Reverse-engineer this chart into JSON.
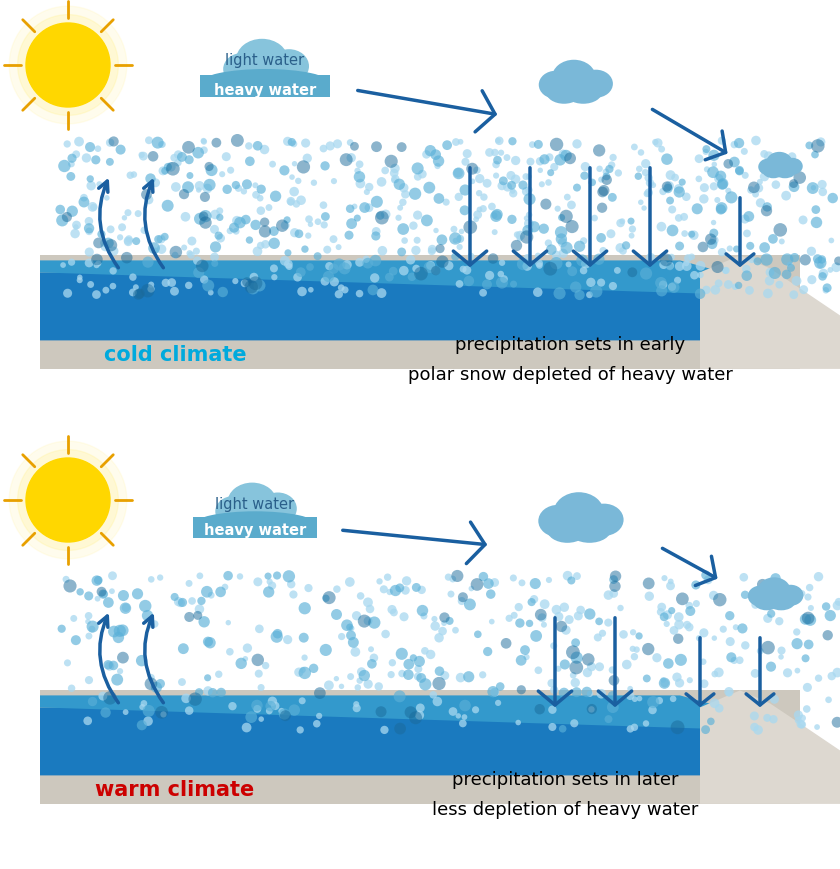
{
  "bg_transparent": true,
  "ocean_color": "#1a7abf",
  "ocean_top_color": "#3399cc",
  "land_color": "#cdc8be",
  "cloud_top_color": "#87c4dc",
  "cloud_base_color": "#5aabcc",
  "cloud_text_light_color": "#2a5f8a",
  "cloud_text_heavy_color": "#ffffff",
  "arrow_color": "#1a5fa0",
  "dot_light": "#a8d8f0",
  "dot_medium": "#5ab0d8",
  "dot_dark": "#1a6a9a",
  "sun_color": "#ffd700",
  "sun_ray_color": "#e8a000",
  "cold_label": "cold climate",
  "cold_label_color": "#00aadd",
  "warm_label": "warm climate",
  "warm_label_color": "#cc0000",
  "cold_text1": "precipitation sets in early",
  "cold_text2": "polar snow depleted of heavy water",
  "warm_text1": "precipitation sets in later",
  "warm_text2": "less depletion of heavy water",
  "cloud_label_light": "light water",
  "cloud_label_heavy": "heavy water"
}
